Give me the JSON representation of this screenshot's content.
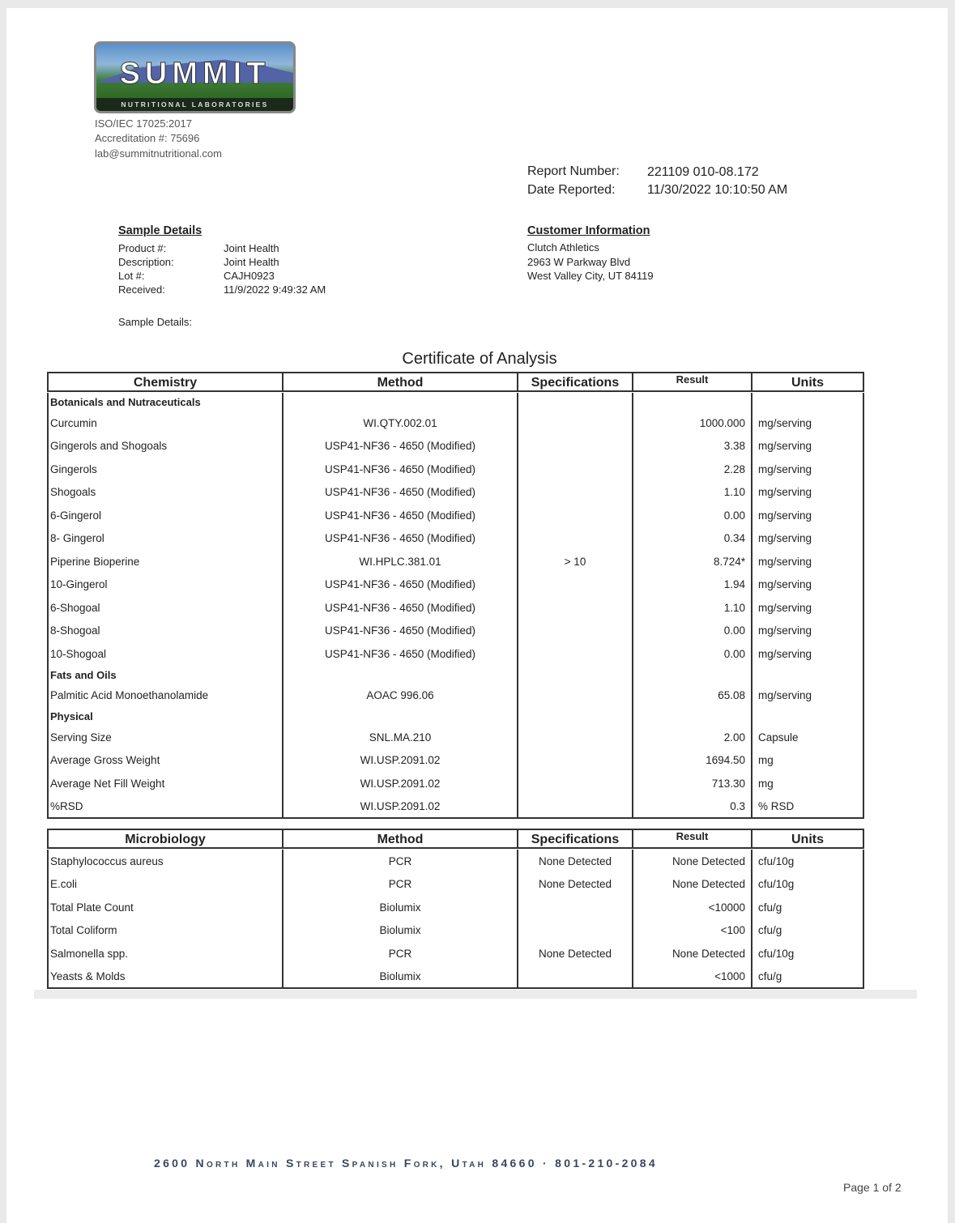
{
  "lab": {
    "logo_text": "SUMMIT",
    "logo_sub": "NUTRITIONAL LABORATORIES",
    "iso": "ISO/IEC 17025:2017",
    "accreditation": "Accreditation #: 75696",
    "email": "lab@summitnutritional.com"
  },
  "report": {
    "number_label": "Report Number:",
    "number": "221109 010-08.172",
    "date_label": "Date Reported:",
    "date": "11/30/2022 10:10:50 AM"
  },
  "sample": {
    "title": "Sample Details",
    "fields": [
      {
        "label": "Product #:",
        "value": "Joint Health"
      },
      {
        "label": "Description:",
        "value": "Joint Health"
      },
      {
        "label": "Lot #:",
        "value": "CAJH0923"
      },
      {
        "label": "Received:",
        "value": "11/9/2022 9:49:32 AM"
      }
    ],
    "details_label": "Sample Details:"
  },
  "customer": {
    "title": "Customer Information",
    "lines": [
      "Clutch Athletics",
      "2963 W Parkway Blvd",
      "West Valley City, UT 84119"
    ]
  },
  "certificate_title": "Certificate of Analysis",
  "chemistry": {
    "headers": [
      "Chemistry",
      "Method",
      "Specifications",
      "Result",
      "Units"
    ],
    "rows": [
      {
        "section": "Botanicals and Nutraceuticals"
      },
      {
        "name": "Curcumin",
        "method": "WI.QTY.002.01",
        "spec": "",
        "result": "1000.000",
        "units": "mg/serving"
      },
      {
        "name": "Gingerols and Shogoals",
        "method": "USP41-NF36 - 4650 (Modified)",
        "spec": "",
        "result": "3.38",
        "units": "mg/serving"
      },
      {
        "name": "Gingerols",
        "method": "USP41-NF36 - 4650 (Modified)",
        "spec": "",
        "result": "2.28",
        "units": "mg/serving"
      },
      {
        "name": "Shogoals",
        "method": "USP41-NF36 - 4650 (Modified)",
        "spec": "",
        "result": "1.10",
        "units": "mg/serving"
      },
      {
        "name": "6-Gingerol",
        "method": "USP41-NF36 - 4650 (Modified)",
        "spec": "",
        "result": "0.00",
        "units": "mg/serving"
      },
      {
        "name": "8- Gingerol",
        "method": "USP41-NF36 - 4650 (Modified)",
        "spec": "",
        "result": "0.34",
        "units": "mg/serving"
      },
      {
        "name": "Piperine Bioperine",
        "method": "WI.HPLC.381.01",
        "spec": "> 10",
        "result": "8.724*",
        "units": "mg/serving"
      },
      {
        "name": "10-Gingerol",
        "method": "USP41-NF36 - 4650 (Modified)",
        "spec": "",
        "result": "1.94",
        "units": "mg/serving"
      },
      {
        "name": "6-Shogoal",
        "method": "USP41-NF36 - 4650 (Modified)",
        "spec": "",
        "result": "1.10",
        "units": "mg/serving"
      },
      {
        "name": "8-Shogoal",
        "method": "USP41-NF36 - 4650 (Modified)",
        "spec": "",
        "result": "0.00",
        "units": "mg/serving"
      },
      {
        "name": "10-Shogoal",
        "method": "USP41-NF36 - 4650 (Modified)",
        "spec": "",
        "result": "0.00",
        "units": "mg/serving"
      },
      {
        "section": "Fats and Oils"
      },
      {
        "name": "Palmitic Acid Monoethanolamide",
        "method": "AOAC 996.06",
        "spec": "",
        "result": "65.08",
        "units": "mg/serving"
      },
      {
        "section": "Physical"
      },
      {
        "name": "Serving Size",
        "method": "SNL.MA.210",
        "spec": "",
        "result": "2.00",
        "units": "Capsule"
      },
      {
        "name": "Average Gross Weight",
        "method": "WI.USP.2091.02",
        "spec": "",
        "result": "1694.50",
        "units": "mg"
      },
      {
        "name": "Average Net Fill Weight",
        "method": "WI.USP.2091.02",
        "spec": "",
        "result": "713.30",
        "units": "mg"
      },
      {
        "name": "%RSD",
        "method": "WI.USP.2091.02",
        "spec": "",
        "result": "0.3",
        "units": "% RSD"
      }
    ]
  },
  "microbiology": {
    "headers": [
      "Microbiology",
      "Method",
      "Specifications",
      "Result",
      "Units"
    ],
    "rows": [
      {
        "name": "Staphylococcus aureus",
        "method": "PCR",
        "spec": "None Detected",
        "result": "None Detected",
        "units": "cfu/10g"
      },
      {
        "name": "E.coli",
        "method": "PCR",
        "spec": "None Detected",
        "result": "None Detected",
        "units": "cfu/10g"
      },
      {
        "name": "Total Plate Count",
        "method": "Biolumix",
        "spec": "",
        "result": "<10000",
        "units": "cfu/g"
      },
      {
        "name": "Total Coliform",
        "method": "Biolumix",
        "spec": "",
        "result": "<100",
        "units": "cfu/g"
      },
      {
        "name": "Salmonella spp.",
        "method": "PCR",
        "spec": "None Detected",
        "result": "None Detected",
        "units": "cfu/10g"
      },
      {
        "name": "Yeasts & Molds",
        "method": "Biolumix",
        "spec": "",
        "result": "<1000",
        "units": "cfu/g"
      }
    ]
  },
  "footer": {
    "address": "2600 North Main Street Spanish Fork, Utah  84660 · 801-210-2084",
    "page": "Page 1 of 2"
  }
}
